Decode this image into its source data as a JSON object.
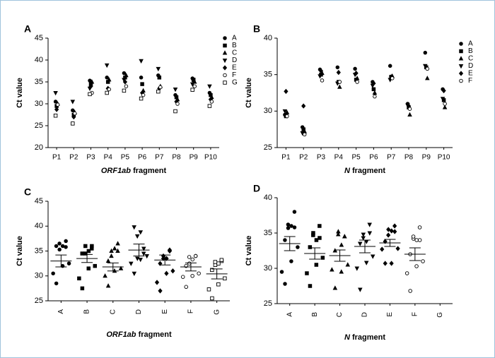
{
  "chart_data": [
    {
      "type": "scatter",
      "panel": "A",
      "ylabel": "Ct value",
      "xlabel_italic": "ORF1ab",
      "xlabel": "fragment",
      "categories": [
        "P1",
        "P2",
        "P3",
        "P4",
        "P5",
        "P6",
        "P7",
        "P8",
        "P9",
        "P10"
      ],
      "ylim": [
        20,
        45
      ],
      "yticks": [
        20,
        25,
        30,
        35,
        40,
        45
      ],
      "legend": "right",
      "color": "#000000",
      "series": [
        {
          "name": "A",
          "marker": "circle",
          "values": [
            30.5,
            28.5,
            35.3,
            36,
            37,
            36,
            36.5,
            32,
            35.8,
            32.5
          ]
        },
        {
          "name": "B",
          "marker": "square",
          "values": [
            29.5,
            27.5,
            34.5,
            35,
            36,
            34.5,
            36,
            31.5,
            35.5,
            32
          ]
        },
        {
          "name": "C",
          "marker": "triangle",
          "values": [
            30,
            28,
            35,
            35.5,
            36.5,
            33,
            34,
            31,
            35,
            31.5
          ]
        },
        {
          "name": "D",
          "marker": "triangle-down",
          "values": [
            32.5,
            30.5,
            33.5,
            38.8,
            35.5,
            39.8,
            38,
            33.3,
            34.5,
            34
          ]
        },
        {
          "name": "E",
          "marker": "diamond",
          "values": [
            28.7,
            27,
            34,
            33.5,
            35,
            32.5,
            33.5,
            30.5,
            35.2,
            31
          ]
        },
        {
          "name": "F",
          "marker": "circle-open",
          "values": [
            29.8,
            27.8,
            32.5,
            33.3,
            34,
            32,
            33.8,
            30,
            34,
            30.5
          ]
        },
        {
          "name": "G",
          "marker": "square-open",
          "values": [
            27.3,
            25.5,
            32.2,
            32.5,
            33,
            31.2,
            32.8,
            28.3,
            33.2,
            29.5
          ]
        }
      ]
    },
    {
      "type": "scatter",
      "panel": "B",
      "ylabel": "Ct value",
      "xlabel_italic": "N",
      "xlabel": "fragment",
      "categories": [
        "P1",
        "P2",
        "P3",
        "P4",
        "P5",
        "P6",
        "P7",
        "P8",
        "P9",
        "P10"
      ],
      "ylim": [
        25,
        40
      ],
      "yticks": [
        25,
        30,
        35,
        40
      ],
      "legend": "right",
      "color": "#000000",
      "series": [
        {
          "name": "A",
          "marker": "circle",
          "values": [
            29.5,
            27.8,
            35.7,
            36,
            35.8,
            34,
            36.2,
            31,
            38,
            33
          ]
        },
        {
          "name": "B",
          "marker": "square",
          "values": [
            29.3,
            27.5,
            35,
            34,
            34.3,
            33,
            34.7,
            30.5,
            36,
            31.5
          ]
        },
        {
          "name": "C",
          "marker": "triangle",
          "values": [
            29.8,
            27.2,
            35.2,
            33.3,
            34.5,
            32.5,
            34.8,
            29.5,
            34.5,
            30.5
          ]
        },
        {
          "name": "D",
          "marker": "triangle-down",
          "values": [
            30,
            27,
            34.8,
            33.8,
            35,
            33.5,
            34.3,
            30.8,
            36.2,
            31.7
          ]
        },
        {
          "name": "E",
          "marker": "diamond",
          "values": [
            32.7,
            30.7,
            35.5,
            35.3,
            35.2,
            33.8,
            34.7,
            30.7,
            36,
            32.8
          ]
        },
        {
          "name": "F",
          "marker": "circle-open",
          "values": [
            29.3,
            26.8,
            34.2,
            34,
            34,
            32,
            34.5,
            30.3,
            35.8,
            31
          ]
        }
      ]
    },
    {
      "type": "dot",
      "panel": "C",
      "ylabel": "Ct value",
      "xlabel_italic": "ORF1ab",
      "xlabel": "fragment",
      "categories": [
        "A",
        "B",
        "C",
        "D",
        "E",
        "F",
        "G"
      ],
      "ylim": [
        25,
        45
      ],
      "yticks": [
        25,
        30,
        35,
        40,
        45
      ],
      "means": [
        33,
        33.5,
        31.8,
        35.2,
        33.2,
        31.8,
        30.4
      ],
      "errors": [
        1.2,
        0.8,
        0.8,
        1.2,
        1,
        0.8,
        1
      ]
    },
    {
      "type": "dot",
      "panel": "D",
      "ylabel": "Ct value",
      "xlabel_italic": "N",
      "xlabel": "fragment",
      "categories": [
        "A",
        "B",
        "C",
        "D",
        "E",
        "F",
        "G"
      ],
      "ylim": [
        25,
        40
      ],
      "yticks": [
        25,
        30,
        35,
        40
      ],
      "means": [
        33.5,
        32.1,
        31.8,
        33.1,
        33.6,
        32,
        null
      ],
      "errors": [
        1,
        0.8,
        0.8,
        0.9,
        0.5,
        0.9,
        null
      ]
    }
  ]
}
